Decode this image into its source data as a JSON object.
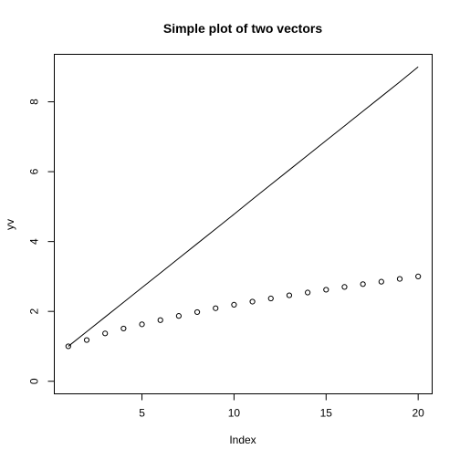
{
  "chart_data": {
    "type": "line",
    "title": "Simple plot of two vectors",
    "xlabel": "Index",
    "ylabel": "yv",
    "xlim": [
      0.24,
      20.76
    ],
    "ylim": [
      -0.36,
      9.36
    ],
    "x_ticks": [
      5,
      10,
      15,
      20
    ],
    "y_ticks": [
      0,
      2,
      4,
      6,
      8
    ],
    "grid": false,
    "series": [
      {
        "style": "line",
        "x": [
          1,
          2,
          3,
          4,
          5,
          6,
          7,
          8,
          9,
          10,
          11,
          12,
          13,
          14,
          15,
          16,
          17,
          18,
          19,
          20
        ],
        "values": [
          1.0,
          1.42,
          1.84,
          2.26,
          2.68,
          3.1,
          3.52,
          3.94,
          4.36,
          4.78,
          5.21,
          5.63,
          6.05,
          6.47,
          6.89,
          7.31,
          7.73,
          8.15,
          8.57,
          9.0
        ]
      },
      {
        "style": "points",
        "x": [
          1,
          2,
          3,
          4,
          5,
          6,
          7,
          8,
          9,
          10,
          11,
          12,
          13,
          14,
          15,
          16,
          17,
          18,
          19,
          20
        ],
        "values": [
          1.0,
          1.18,
          1.37,
          1.51,
          1.63,
          1.75,
          1.87,
          1.98,
          2.09,
          2.19,
          2.28,
          2.37,
          2.46,
          2.54,
          2.62,
          2.7,
          2.78,
          2.85,
          2.93,
          3.0
        ]
      }
    ]
  }
}
